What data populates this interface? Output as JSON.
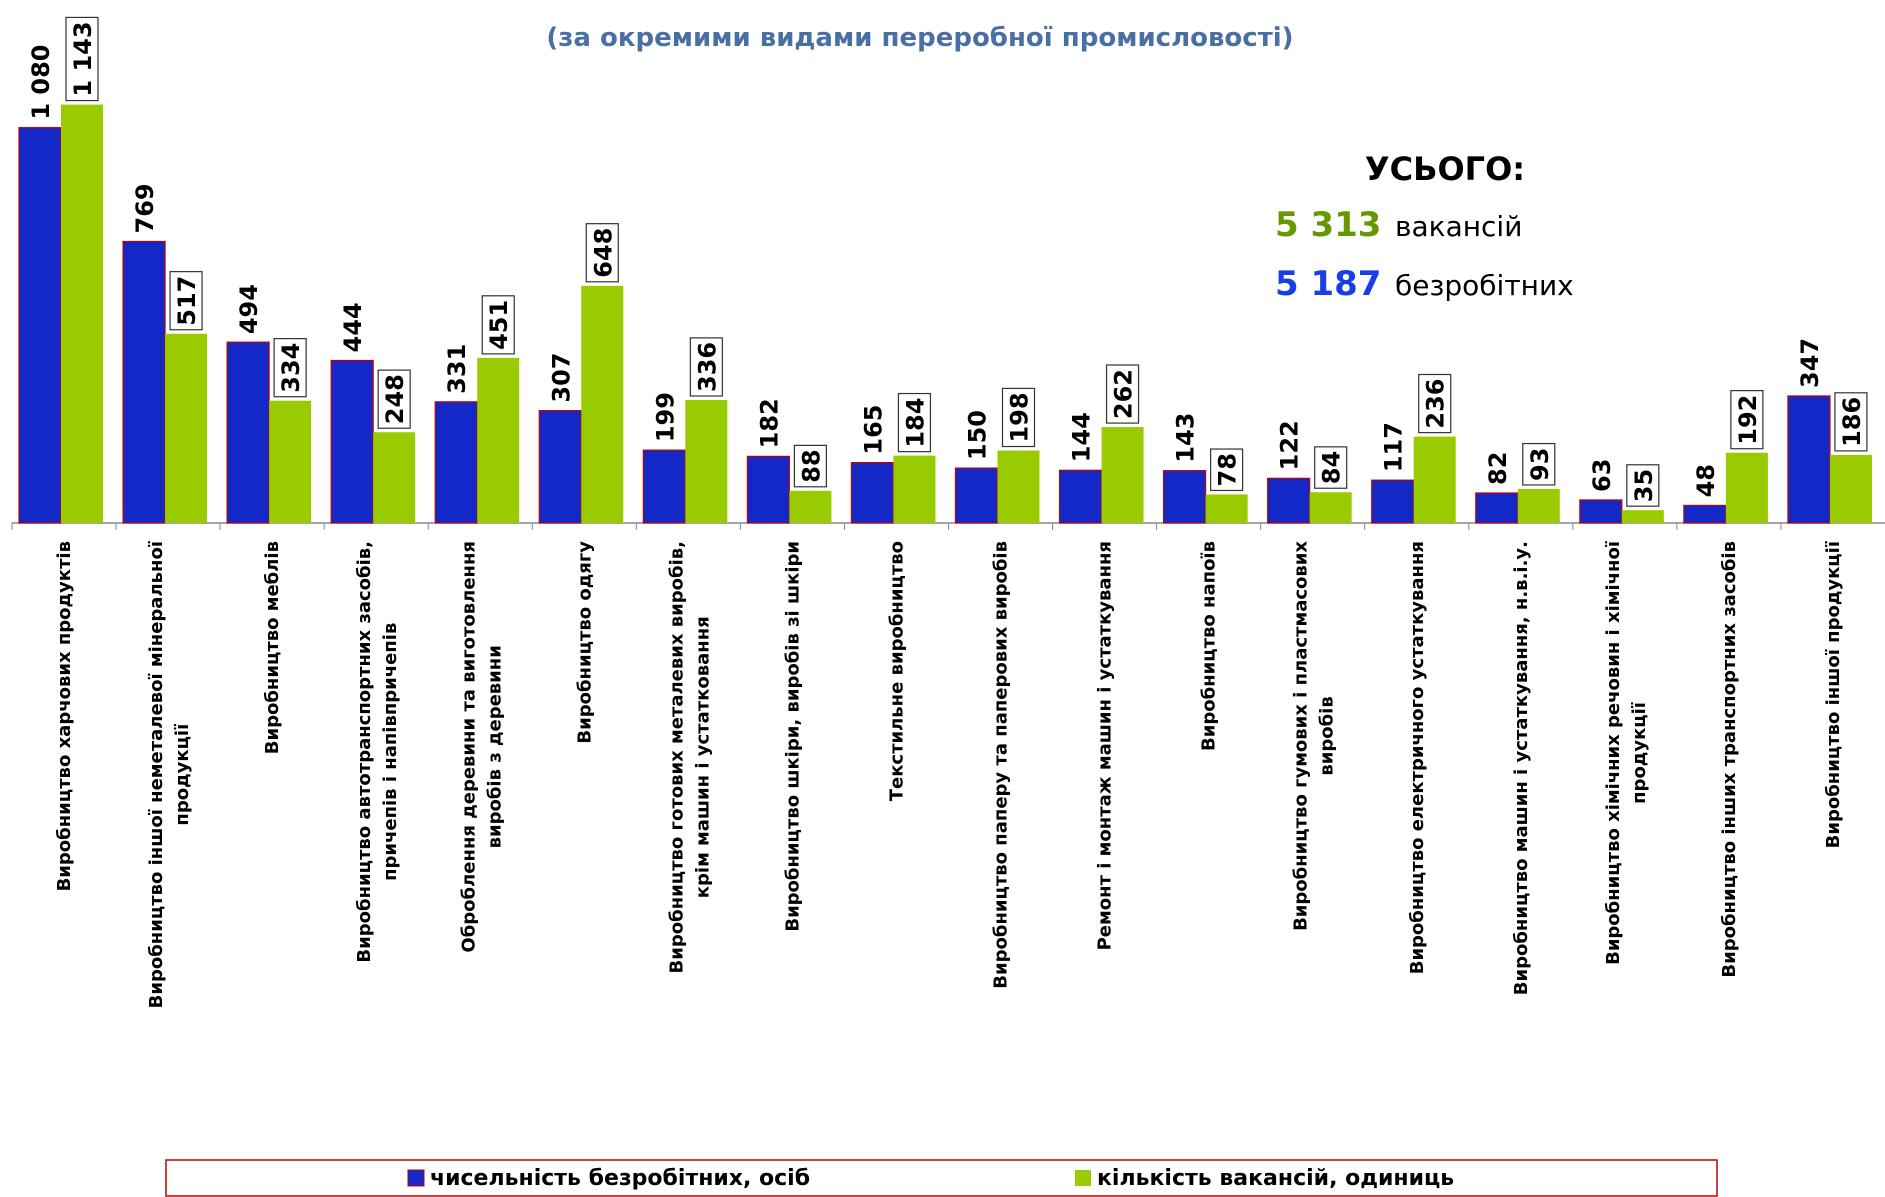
{
  "chart_data": {
    "type": "bar",
    "subtitle": "(за окремими видами переробної промисловості)",
    "categories": [
      "Виробництво харчових продуктів",
      "Виробництво іншої неметалевої мінеральної продукції",
      "Виробництво меблів",
      "Виробництво автотранспортних засобів, причепів і напівпричепів",
      "Оброблення деревини та виготовлення виробів з деревини",
      "Виробництво одягу",
      "Виробництво готових металевих виробів, крім машин і устатковання",
      "Виробництво шкіри, виробів зі шкіри",
      "Текстильне виробництво",
      "Виробництво паперу та паперових виробів",
      "Ремонт і монтаж машин і устаткування",
      "Виробництво напоїв",
      "Виробництво гумових і пластмасових виробів",
      "Виробництво електричного устаткування",
      "Виробництво машин і устаткування, н.в.і.у.",
      "Виробництво хімічних речовин і хімічної продукції",
      "Виробництво інших транспортних засобів",
      "Виробництво іншої продукції"
    ],
    "series": [
      {
        "name": "чисельність безробітних, осіб",
        "color": "#1428c8",
        "values": [
          1080,
          769,
          494,
          444,
          331,
          307,
          199,
          182,
          165,
          150,
          144,
          143,
          122,
          117,
          82,
          63,
          48,
          347
        ],
        "value_labels": [
          "1 080",
          "769",
          "494",
          "444",
          "331",
          "307",
          "199",
          "182",
          "165",
          "150",
          "144",
          "143",
          "122",
          "117",
          "82",
          "63",
          "48",
          "347"
        ]
      },
      {
        "name": "кількість вакансій, одиниць",
        "color": "#99cc00",
        "values": [
          1143,
          517,
          334,
          248,
          451,
          648,
          336,
          88,
          184,
          198,
          262,
          78,
          84,
          236,
          93,
          35,
          192,
          186
        ],
        "value_labels": [
          "1 143",
          "517",
          "334",
          "248",
          "451",
          "648",
          "336",
          "88",
          "184",
          "198",
          "262",
          "78",
          "84",
          "236",
          "93",
          "35",
          "192",
          "186"
        ]
      }
    ],
    "totals": {
      "title": "УСЬОГО:",
      "vacancies": {
        "value": 5313,
        "label": "5 313",
        "text": "вакансій",
        "color": "#669900"
      },
      "unemployed": {
        "value": 5187,
        "label": "5 187",
        "text": "безробітних",
        "color": "#1a3ee6"
      }
    }
  }
}
